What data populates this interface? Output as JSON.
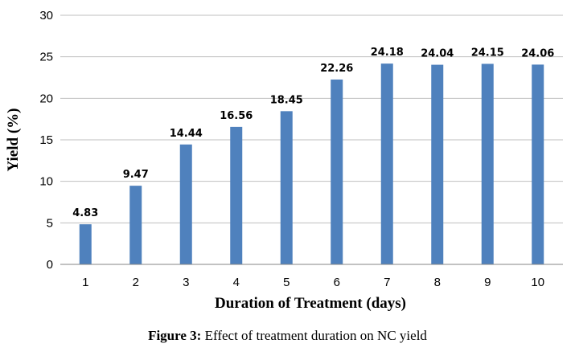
{
  "chart_data": {
    "type": "bar",
    "categories": [
      "1",
      "2",
      "3",
      "4",
      "5",
      "6",
      "7",
      "8",
      "9",
      "10"
    ],
    "values": [
      4.83,
      9.47,
      14.44,
      16.56,
      18.45,
      22.26,
      24.18,
      24.04,
      24.15,
      24.06
    ],
    "data_labels": [
      "4.83",
      "9.47",
      "14.44",
      "16.56",
      "18.45",
      "22.26",
      "24.18",
      "24.04",
      "24.15",
      "24.06"
    ],
    "xlabel": "Duration of Treatment (days)",
    "ylabel": "Yield (%)",
    "ylim": [
      0,
      30
    ],
    "yticks": [
      "0",
      "5",
      "10",
      "15",
      "20",
      "25",
      "30"
    ],
    "grid": true,
    "bar_color": "#4f81bd",
    "grid_color": "#bfbfbf"
  },
  "caption": {
    "prefix": "Figure 3:",
    "text": " Effect of treatment duration on NC yield"
  }
}
